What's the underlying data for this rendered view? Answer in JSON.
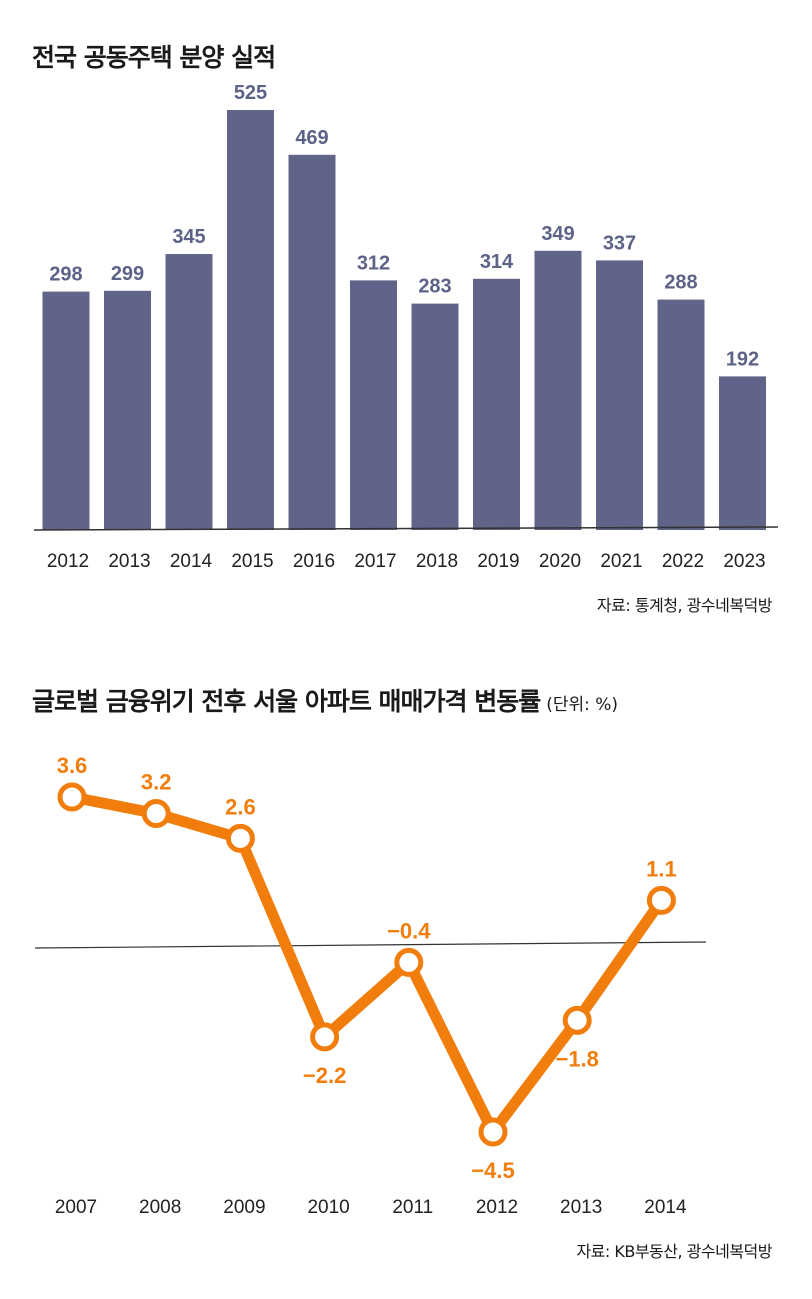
{
  "colors": {
    "bar": "#5f6488",
    "line": "#f07d0c",
    "axis": "#333333",
    "text": "#1a1a1a"
  },
  "chart_data": [
    {
      "type": "bar",
      "title": "전국 공동주택 분양 실적",
      "source": "자료: 통계청, 광수네복덕방",
      "categories": [
        "2012",
        "2013",
        "2014",
        "2015",
        "2016",
        "2017",
        "2018",
        "2019",
        "2020",
        "2021",
        "2022",
        "2023"
      ],
      "values": [
        298,
        299,
        345,
        525,
        469,
        312,
        283,
        314,
        349,
        337,
        288,
        192
      ],
      "value_labels": [
        "298",
        "299",
        "345",
        "525",
        "469",
        "312",
        "283",
        "314",
        "349",
        "337",
        "288",
        "192"
      ],
      "ylim": [
        0,
        525
      ],
      "xlabel": "",
      "ylabel": ""
    },
    {
      "type": "line",
      "title": "글로벌 금융위기 전후 서울 아파트 매매가격 변동률",
      "unit": "(단위: %)",
      "source": "자료: KB부동산, 광수네복덕방",
      "categories": [
        "2007",
        "2008",
        "2009",
        "2010",
        "2011",
        "2012",
        "2013",
        "2014"
      ],
      "values": [
        3.6,
        3.2,
        2.6,
        -2.2,
        -0.4,
        -4.5,
        -1.8,
        1.1
      ],
      "value_labels": [
        "3.6",
        "3.2",
        "2.6",
        "−2.2",
        "−0.4",
        "−4.5",
        "−1.8",
        "1.1"
      ],
      "label_positions": [
        "above",
        "above",
        "above",
        "below",
        "above",
        "below",
        "below",
        "above"
      ],
      "baseline": 0,
      "ylim": [
        -4.5,
        3.6
      ],
      "xlabel": "",
      "ylabel": ""
    }
  ]
}
